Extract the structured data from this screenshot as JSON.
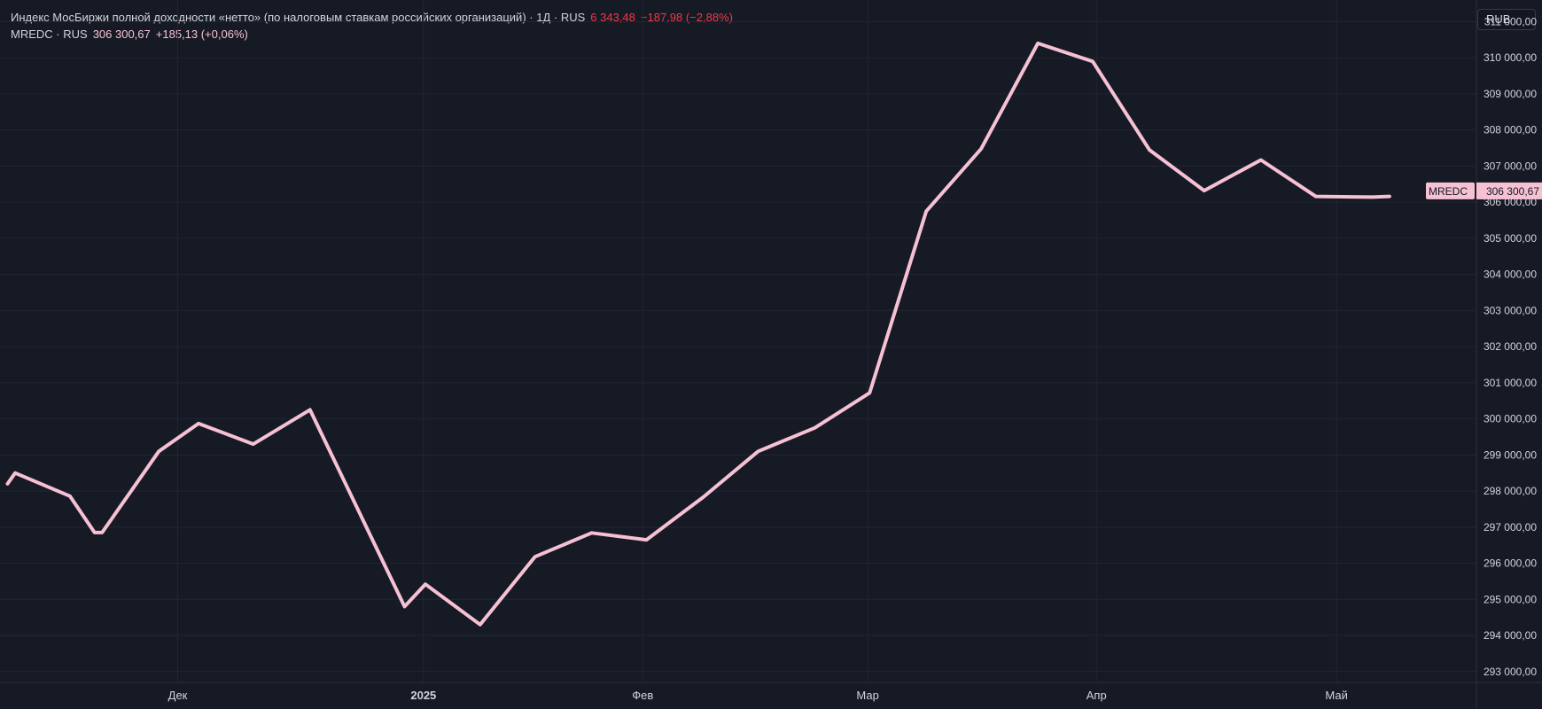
{
  "legend": {
    "main_title": "Индекс МосБиржи полной доходности «нетто» (по налоговым ставкам российских организаций)",
    "sep1": " · ",
    "interval": "1Д",
    "sep2": " · ",
    "exchange": "RUS",
    "main_value": "6 343,48",
    "main_change": "−187,98 (−2,88%)",
    "symbol": "MREDC",
    "sep3": " · ",
    "symbol_exchange": "RUS",
    "symbol_value": "306 300,67",
    "symbol_change": "+185,13 (+0,06%)"
  },
  "currency_button": {
    "label": "RUB"
  },
  "price_tag": {
    "symbol": "MREDC",
    "value": "306 300,67"
  },
  "colors": {
    "background": "#161a25",
    "grid": "#222632",
    "line": "#f7c1d4",
    "text": "#d1d4dc",
    "negative": "#f23645"
  },
  "chart_data": {
    "type": "line",
    "series": [
      {
        "name": "MREDC",
        "values": [
          298200,
          298500,
          297860,
          296850,
          296850,
          299100,
          299870,
          299300,
          300250,
          294800,
          295420,
          294300,
          296180,
          296840,
          296650,
          297830,
          299100,
          299750,
          300720,
          305750,
          307480,
          310400,
          309900,
          307450,
          306320,
          307170,
          306160,
          306140,
          306160
        ]
      }
    ],
    "x": [
      0,
      0.4,
      3.3,
      4.6,
      5,
      8,
      10.1,
      13,
      16,
      21,
      22.1,
      25,
      27.9,
      30.9,
      33.8,
      36.8,
      39.7,
      42.7,
      45.6,
      48.6,
      51.5,
      54.5,
      57.4,
      60.4,
      63.3,
      66.3,
      69.2,
      72.2,
      73.1
    ],
    "x_ticks": [
      {
        "label": "Дек",
        "x": 9,
        "bold": false
      },
      {
        "label": "2025",
        "x": 22,
        "bold": true
      },
      {
        "label": "Фев",
        "x": 33.6,
        "bold": false
      },
      {
        "label": "Мар",
        "x": 45.5,
        "bold": false
      },
      {
        "label": "Апр",
        "x": 57.6,
        "bold": false
      },
      {
        "label": "Май",
        "x": 70.3,
        "bold": false
      }
    ],
    "y_ticks": [
      "311 000,00",
      "310 000,00",
      "309 000,00",
      "308 000,00",
      "307 000,00",
      "306 000,00",
      "305 000,00",
      "304 000,00",
      "303 000,00",
      "302 000,00",
      "301 000,00",
      "300 000,00",
      "299 000,00",
      "298 000,00",
      "297 000,00",
      "296 000,00",
      "295 000,00",
      "294 000,00",
      "293 000,00"
    ],
    "y_tick_values": [
      311000,
      310000,
      309000,
      308000,
      307000,
      306000,
      305000,
      304000,
      303000,
      302000,
      301000,
      300000,
      299000,
      298000,
      297000,
      296000,
      295000,
      294000,
      293000
    ],
    "ylim": [
      292700,
      311600
    ],
    "xlim": [
      -0.4,
      77.7
    ],
    "grid": true,
    "last_value": 306300.67
  }
}
